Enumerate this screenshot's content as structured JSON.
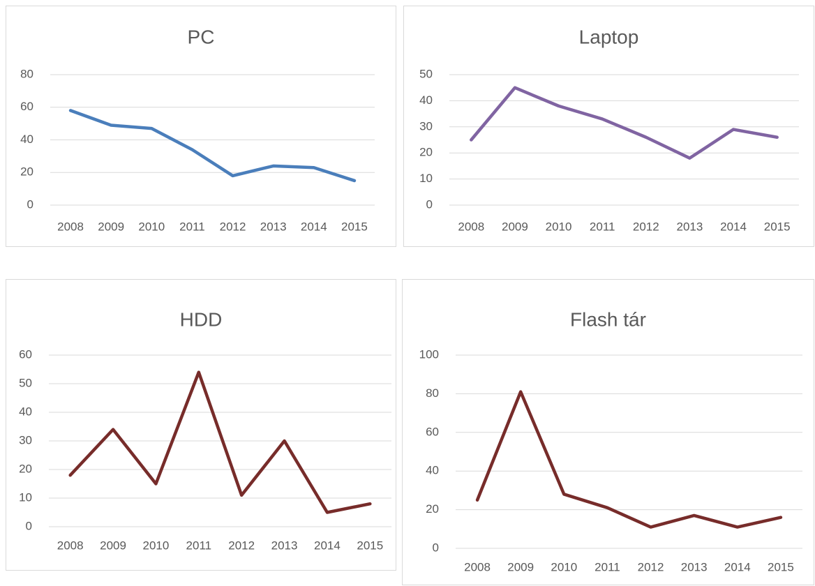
{
  "chart_data": [
    {
      "type": "line",
      "title": "PC",
      "categories": [
        "2008",
        "2009",
        "2010",
        "2011",
        "2012",
        "2013",
        "2014",
        "2015"
      ],
      "values": [
        58,
        49,
        47,
        34,
        18,
        24,
        23,
        15
      ],
      "color": "#4a7ebb",
      "ylim": [
        0,
        80
      ],
      "yticks": [
        0,
        20,
        40,
        60,
        80
      ],
      "grid": true
    },
    {
      "type": "line",
      "title": "Laptop",
      "categories": [
        "2008",
        "2009",
        "2010",
        "2011",
        "2012",
        "2013",
        "2014",
        "2015"
      ],
      "values": [
        25,
        45,
        38,
        33,
        26,
        18,
        29,
        26
      ],
      "color": "#8064a2",
      "ylim": [
        0,
        50
      ],
      "yticks": [
        0,
        10,
        20,
        30,
        40,
        50
      ],
      "grid": true
    },
    {
      "type": "line",
      "title": "HDD",
      "categories": [
        "2008",
        "2009",
        "2010",
        "2011",
        "2012",
        "2013",
        "2014",
        "2015"
      ],
      "values": [
        18,
        34,
        15,
        54,
        11,
        30,
        5,
        8
      ],
      "color": "#772c2a",
      "ylim": [
        0,
        60
      ],
      "yticks": [
        0,
        10,
        20,
        30,
        40,
        50,
        60
      ],
      "grid": true
    },
    {
      "type": "line",
      "title": "Flash tár",
      "categories": [
        "2008",
        "2009",
        "2010",
        "2011",
        "2012",
        "2013",
        "2014",
        "2015"
      ],
      "values": [
        25,
        81,
        28,
        21,
        11,
        17,
        11,
        16
      ],
      "color": "#772c2a",
      "ylim": [
        0,
        100
      ],
      "yticks": [
        0,
        20,
        40,
        60,
        80,
        100
      ],
      "grid": true
    }
  ]
}
